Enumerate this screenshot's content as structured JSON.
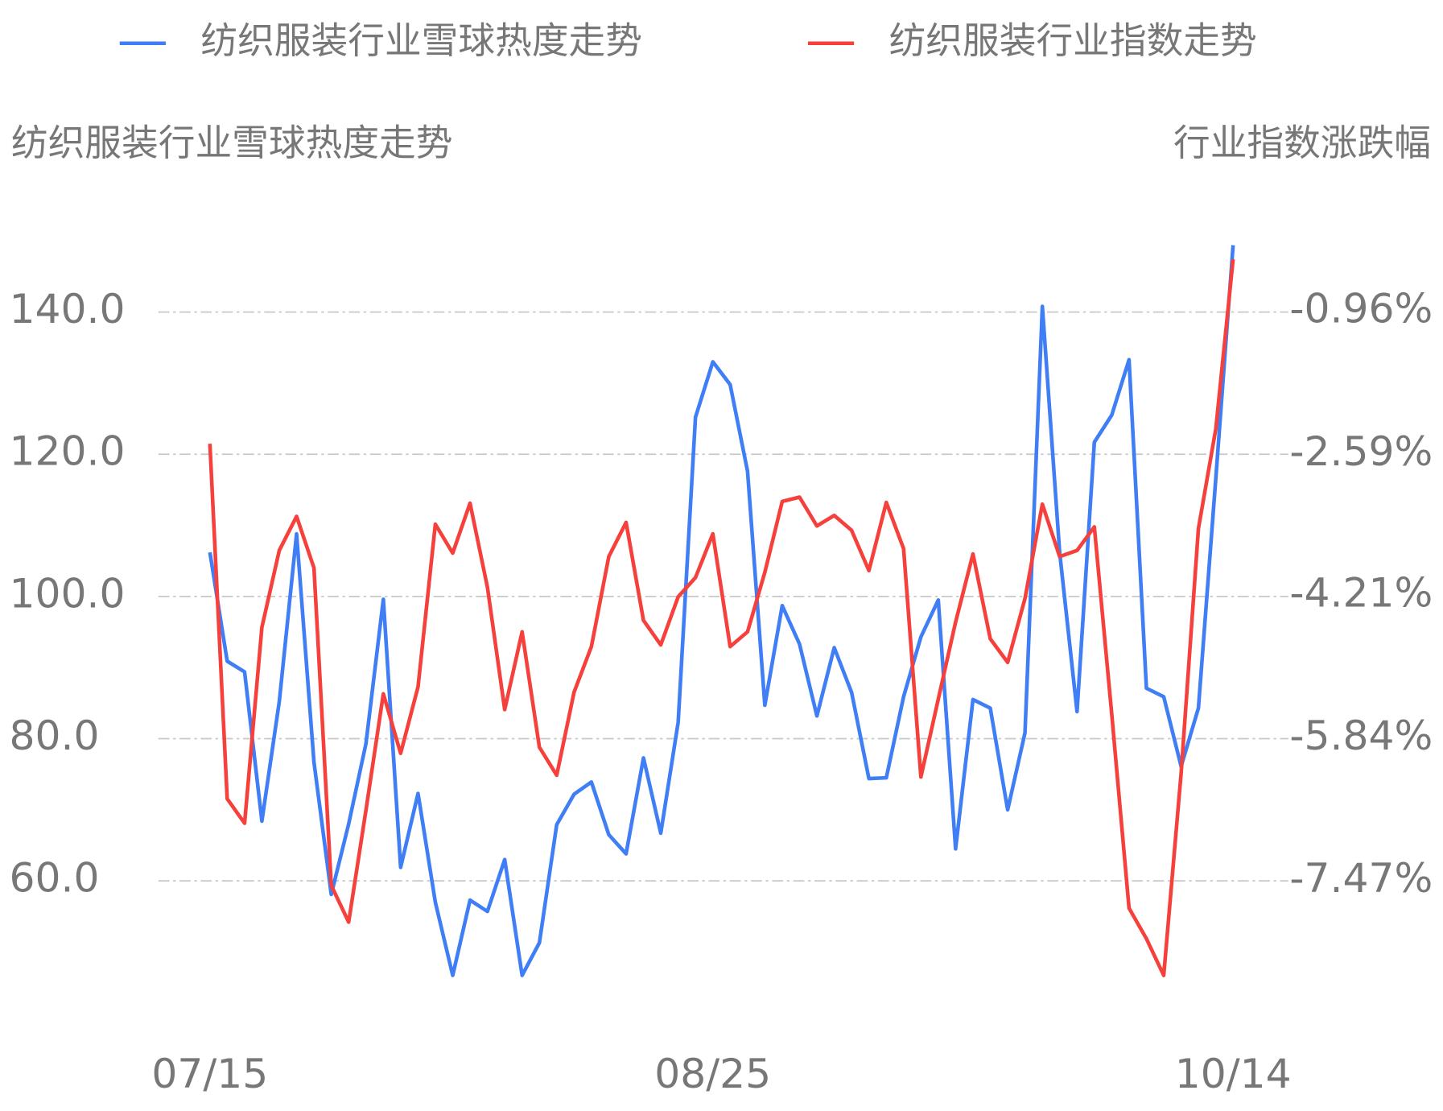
{
  "chart_data": {
    "type": "line",
    "y_label": "纺织服装行业雪球热度走势",
    "y2_label": "行业指数涨跌幅",
    "legend": "top",
    "grid": true,
    "categories": [
      "07/15",
      null,
      null,
      null,
      null,
      null,
      null,
      null,
      null,
      null,
      null,
      null,
      null,
      null,
      null,
      null,
      null,
      null,
      null,
      null,
      null,
      null,
      null,
      null,
      null,
      null,
      null,
      null,
      null,
      "08/25",
      null,
      null,
      null,
      null,
      null,
      null,
      null,
      null,
      null,
      null,
      null,
      null,
      null,
      null,
      null,
      null,
      null,
      null,
      null,
      null,
      null,
      null,
      null,
      null,
      null,
      null,
      null,
      null,
      null,
      "10/14"
    ],
    "ylim": [
      44,
      150
    ],
    "yticks": [
      {
        "value": 60,
        "label": "60.0"
      },
      {
        "value": 80,
        "label": "80.0"
      },
      {
        "value": 100,
        "label": "100.0"
      },
      {
        "value": 120,
        "label": "120.0"
      },
      {
        "value": 140,
        "label": "140.0"
      }
    ],
    "y2lim": [
      -8.77,
      -0.15
    ],
    "y2ticks": [
      {
        "value": -7.47,
        "label": "-7.47%"
      },
      {
        "value": -5.84,
        "label": "-5.84%"
      },
      {
        "value": -4.21,
        "label": "-4.21%"
      },
      {
        "value": -2.59,
        "label": "-2.59%"
      },
      {
        "value": -0.96,
        "label": "-0.96%"
      }
    ],
    "series": [
      {
        "name": "纺织服装行业雪球热度走势",
        "color": "#3f7ef5",
        "values": [
          106.2,
          90.9,
          89.4,
          68.4,
          85.2,
          108.8,
          76.7,
          58.1,
          68.0,
          79.3,
          99.6,
          61.9,
          72.3,
          57.0,
          46.7,
          57.3,
          55.7,
          63.0,
          46.7,
          51.3,
          67.9,
          72.2,
          73.9,
          66.5,
          63.8,
          77.3,
          66.7,
          82.3,
          125.2,
          133.0,
          129.8,
          117.6,
          84.7,
          98.7,
          93.3,
          83.2,
          92.8,
          86.5,
          74.4,
          74.5,
          85.9,
          94.3,
          99.5,
          64.5,
          85.5,
          84.3,
          70.0,
          80.8,
          140.8,
          106.2,
          83.8,
          121.7,
          125.5,
          133.3,
          87.1,
          85.9,
          76.1,
          84.3,
          116.6,
          149.4
        ]
      },
      {
        "name": "纺织服装行业指数走势",
        "color": "#f5403c",
        "axis": "y2",
        "values": [
          -2.47,
          -6.53,
          -6.81,
          -4.57,
          -3.69,
          -3.3,
          -3.89,
          -7.52,
          -7.94,
          -6.66,
          -5.33,
          -6.01,
          -5.25,
          -3.39,
          -3.72,
          -3.15,
          -4.11,
          -5.51,
          -4.62,
          -5.94,
          -6.26,
          -5.31,
          -4.79,
          -3.76,
          -3.37,
          -4.49,
          -4.77,
          -4.22,
          -4.0,
          -3.5,
          -4.79,
          -4.62,
          -3.94,
          -3.13,
          -3.08,
          -3.41,
          -3.29,
          -3.46,
          -3.92,
          -3.14,
          -3.67,
          -6.28,
          -5.39,
          -4.51,
          -3.73,
          -4.7,
          -4.97,
          -4.24,
          -3.16,
          -3.76,
          -3.69,
          -3.42,
          -5.56,
          -7.78,
          -8.13,
          -8.55,
          -6.24,
          -3.44,
          -2.3,
          -0.36
        ]
      }
    ]
  }
}
